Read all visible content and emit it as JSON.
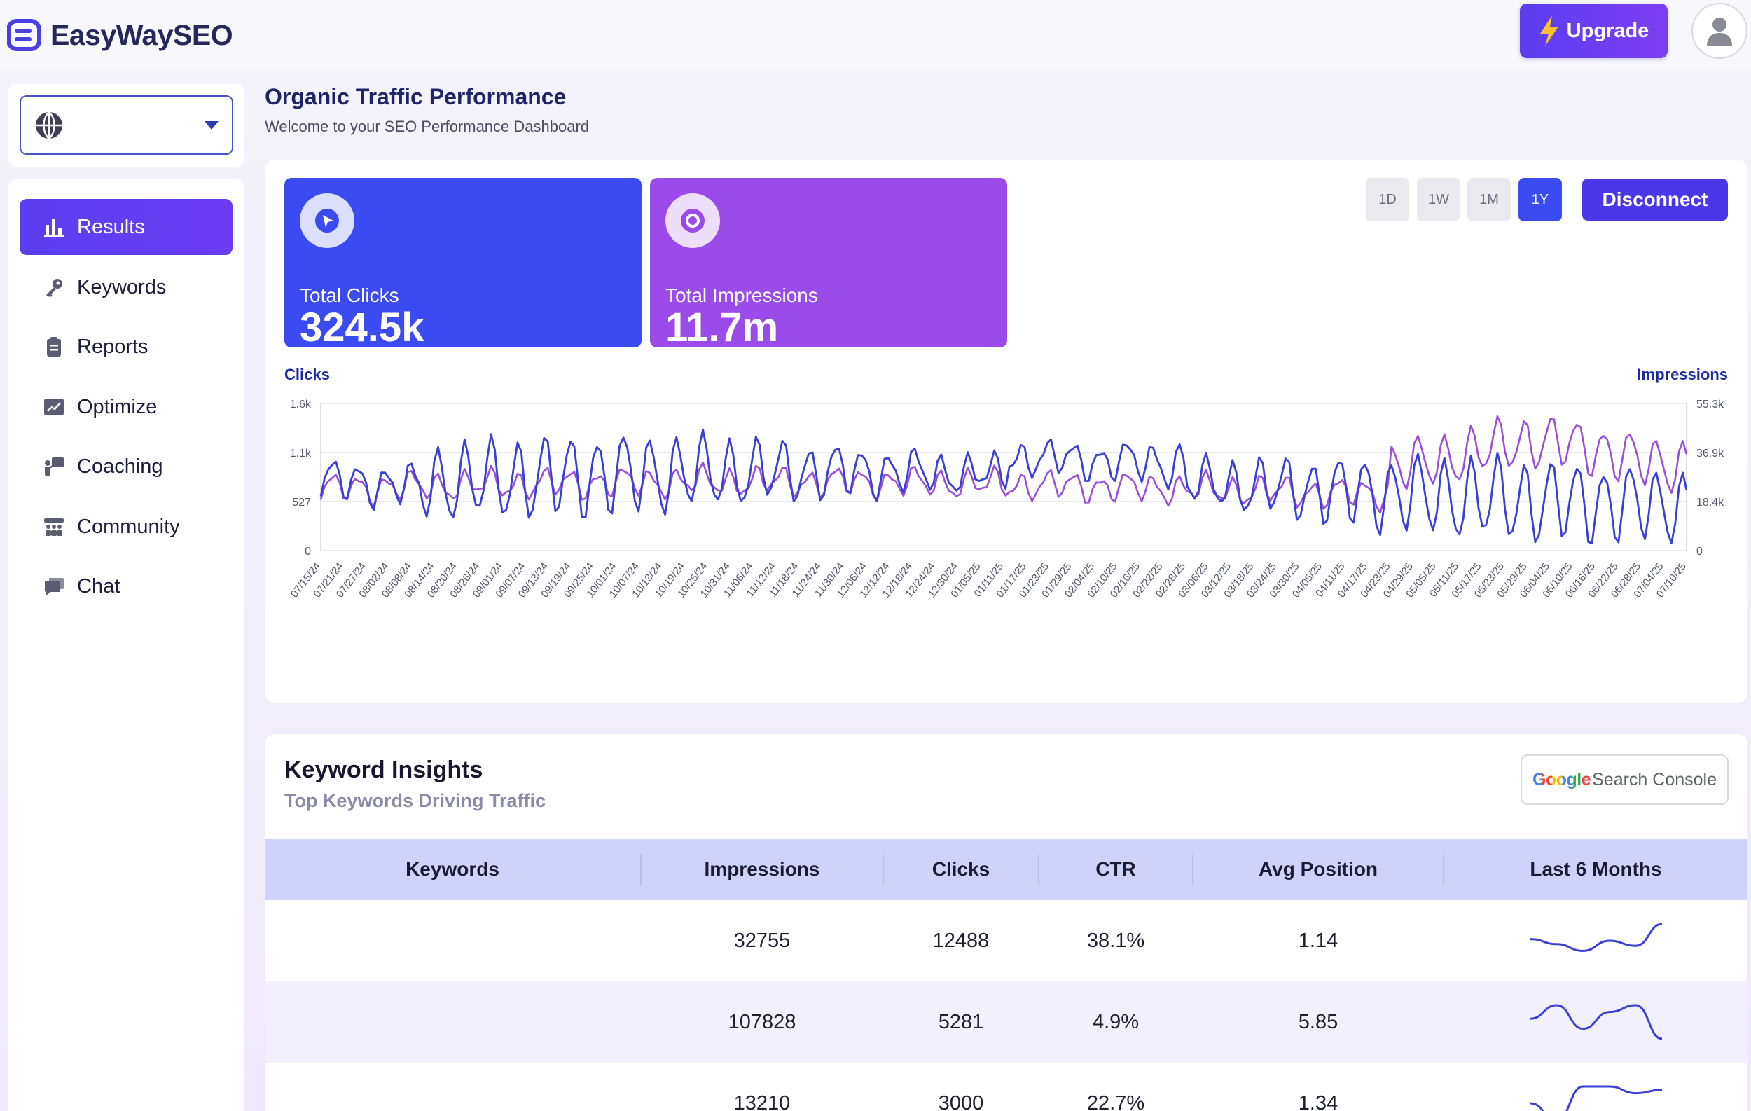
{
  "brand": {
    "name": "EasyWaySEO"
  },
  "header": {
    "upgrade_label": "Upgrade"
  },
  "sidebar": {
    "site_selector_value": "",
    "items": [
      {
        "label": "Results",
        "icon": "bar-chart-icon",
        "active": true
      },
      {
        "label": "Keywords",
        "icon": "key-icon"
      },
      {
        "label": "Reports",
        "icon": "clipboard-icon"
      },
      {
        "label": "Optimize",
        "icon": "trend-chart-icon"
      },
      {
        "label": "Coaching",
        "icon": "presenter-icon"
      },
      {
        "label": "Community",
        "icon": "community-icon"
      },
      {
        "label": "Chat",
        "icon": "chat-bubble-icon"
      }
    ]
  },
  "page": {
    "title": "Organic Traffic Performance",
    "subtitle": "Welcome to your SEO Performance Dashboard"
  },
  "stats": {
    "clicks_label": "Total Clicks",
    "clicks_value": "324.5k",
    "impressions_label": "Total Impressions",
    "impressions_value": "11.7m"
  },
  "range_buttons": [
    "1D",
    "1W",
    "1M",
    "1Y"
  ],
  "active_range": "1Y",
  "disconnect_label": "Disconnect",
  "chart_data": {
    "type": "line",
    "left_axis_label": "Clicks",
    "right_axis_label": "Impressions",
    "left_ticks": [
      "1.6k",
      "1.1k",
      "527",
      "0"
    ],
    "right_ticks": [
      "55.3k",
      "36.9k",
      "18.4k",
      "0"
    ],
    "ylim_left": [
      0,
      1580
    ],
    "ylim_right": [
      0,
      55300
    ],
    "x_labels": [
      "07/15/24",
      "07/21/24",
      "07/27/24",
      "08/02/24",
      "08/08/24",
      "08/14/24",
      "08/20/24",
      "08/26/24",
      "09/01/24",
      "09/07/24",
      "09/13/24",
      "09/19/24",
      "09/25/24",
      "10/01/24",
      "10/07/24",
      "10/13/24",
      "10/19/24",
      "10/25/24",
      "10/31/24",
      "11/06/24",
      "11/12/24",
      "11/18/24",
      "11/24/24",
      "11/30/24",
      "12/06/24",
      "12/12/24",
      "12/18/24",
      "12/24/24",
      "12/30/24",
      "01/05/25",
      "01/11/25",
      "01/17/25",
      "01/23/25",
      "01/29/25",
      "02/04/25",
      "02/10/25",
      "02/16/25",
      "02/22/25",
      "02/28/25",
      "03/06/25",
      "03/12/25",
      "03/18/25",
      "03/24/25",
      "03/30/25",
      "04/05/25",
      "04/11/25",
      "04/17/25",
      "04/23/25",
      "04/29/25",
      "05/05/25",
      "05/11/25",
      "05/17/25",
      "05/23/25",
      "05/29/25",
      "06/04/25",
      "06/10/25",
      "06/16/25",
      "06/22/25",
      "06/28/25",
      "07/04/25",
      "07/10/25"
    ],
    "series": [
      {
        "name": "Clicks",
        "color": "#3a3fd6",
        "axis": "left"
      },
      {
        "name": "Impressions",
        "color": "#9a4fdc",
        "axis": "right"
      }
    ],
    "grid": true
  },
  "keywords": {
    "title": "Keyword Insights",
    "subtitle": "Top Keywords Driving Traffic",
    "gsc_google": "Google",
    "gsc_label": "Search Console",
    "columns": [
      "Keywords",
      "Impressions",
      "Clicks",
      "CTR",
      "Avg Position",
      "Last 6 Months"
    ],
    "rows": [
      {
        "keyword": "",
        "impressions": "32755",
        "clicks": "12488",
        "ctr": "38.1%",
        "avg_position": "1.14",
        "trend": [
          0.55,
          0.4,
          0.2,
          0.5,
          0.35,
          1.0
        ]
      },
      {
        "keyword": "",
        "impressions": "107828",
        "clicks": "5281",
        "ctr": "4.9%",
        "avg_position": "5.85",
        "trend": [
          0.6,
          1.0,
          0.3,
          0.8,
          1.0,
          0.0
        ]
      },
      {
        "keyword": "",
        "impressions": "13210",
        "clicks": "3000",
        "ctr": "22.7%",
        "avg_position": "1.34",
        "trend": [
          0.5,
          0.0,
          1.0,
          1.0,
          0.8,
          0.9
        ]
      }
    ]
  }
}
